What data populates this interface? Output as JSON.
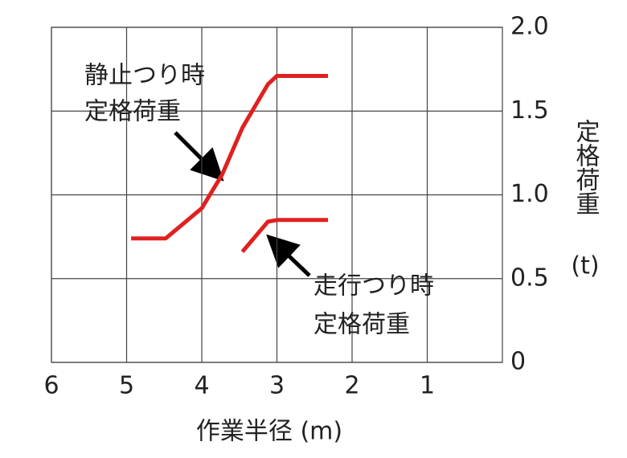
{
  "chart_data": {
    "type": "line",
    "xlabel": "作業半径 (m)",
    "ylabel": [
      "定格荷重",
      "(t)"
    ],
    "xlim": [
      6,
      0
    ],
    "xticks": [
      6,
      5,
      4,
      3,
      2,
      1
    ],
    "ylim": [
      0,
      2
    ],
    "yticks": [
      0,
      0.5,
      {
        "value": 1,
        "label": "1.0"
      },
      1.5,
      {
        "value": 2,
        "label": "2.0"
      }
    ],
    "grid": true,
    "x": [
      4.94,
      4.48,
      4.0,
      3.73,
      3.46,
      3.12,
      3.0,
      2.32
    ],
    "series": [
      {
        "name": "静止つり時定格荷重",
        "color": "#e02020",
        "values": [
          0.74,
          0.74,
          0.92,
          1.12,
          1.4,
          1.66,
          1.71,
          1.71
        ]
      },
      {
        "name": "走行つり時定格荷重",
        "color": "#e02020",
        "values": [
          null,
          null,
          null,
          null,
          0.66,
          0.84,
          0.85,
          0.85
        ]
      }
    ],
    "annotations": [
      {
        "lines": [
          "静止つり時",
          "定格荷重"
        ]
      },
      {
        "lines": [
          "走行つり時",
          "定格荷重"
        ]
      }
    ]
  }
}
